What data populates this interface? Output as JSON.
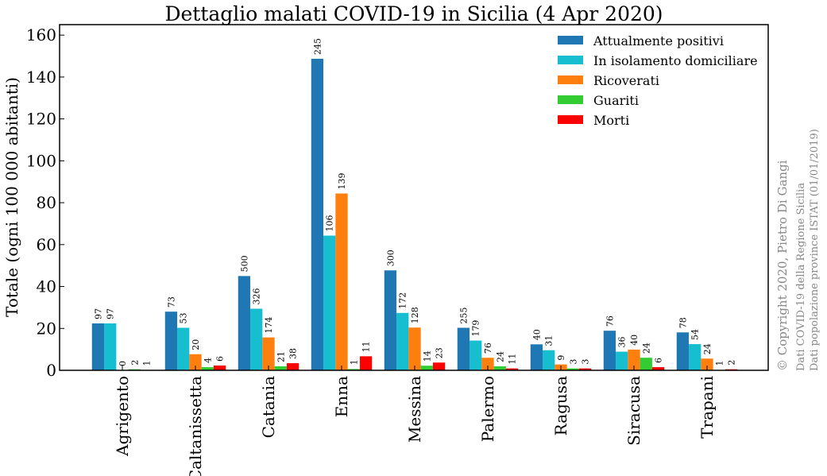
{
  "chart_data": {
    "type": "bar",
    "title": "Dettaglio malati COVID-19 in Sicilia (4 Apr 2020)",
    "xlabel": "",
    "ylabel": "Totale (ogni 100 000 abitanti)",
    "ylim": [
      0,
      165
    ],
    "yticks": [
      0,
      20,
      40,
      60,
      80,
      100,
      120,
      140,
      160
    ],
    "categories": [
      "Agrigento",
      "Caltanissetta",
      "Catania",
      "Enna",
      "Messina",
      "Palermo",
      "Ragusa",
      "Siracusa",
      "Trapani"
    ],
    "legend_position": "top-right",
    "grid": false,
    "series": [
      {
        "name": "Attualmente positivi",
        "color": "#1f77b4",
        "values": [
          22.4,
          28.0,
          45.0,
          148.7,
          47.7,
          20.3,
          12.4,
          18.9,
          18.1
        ],
        "labels": [
          "97",
          "73",
          "500",
          "245",
          "300",
          "255",
          "40",
          "76",
          "78"
        ]
      },
      {
        "name": "In isolamento domiciliare",
        "color": "#17becf",
        "values": [
          22.4,
          20.3,
          29.4,
          64.3,
          27.4,
          14.2,
          9.6,
          8.9,
          12.5
        ],
        "labels": [
          "97",
          "53",
          "326",
          "106",
          "172",
          "179",
          "31",
          "36",
          "54"
        ]
      },
      {
        "name": "Ricoverati",
        "color": "#ff7f0e",
        "values": [
          0.0,
          7.7,
          15.7,
          84.4,
          20.4,
          6.0,
          2.8,
          9.9,
          5.6
        ],
        "labels": [
          "0",
          "20",
          "174",
          "139",
          "128",
          "76",
          "9",
          "40",
          "24"
        ]
      },
      {
        "name": "Guariti",
        "color": "#33cc33",
        "values": [
          0.5,
          1.5,
          1.9,
          0.6,
          2.2,
          1.9,
          0.9,
          6.0,
          0.2
        ],
        "labels": [
          "2",
          "4",
          "21",
          "1",
          "14",
          "24",
          "3",
          "24",
          "1"
        ]
      },
      {
        "name": "Morti",
        "color": "#ff0000",
        "values": [
          0.2,
          2.3,
          3.4,
          6.7,
          3.7,
          0.9,
          0.9,
          1.5,
          0.5
        ],
        "labels": [
          "1",
          "6",
          "38",
          "11",
          "23",
          "11",
          "3",
          "6",
          "2"
        ]
      }
    ]
  },
  "credits": {
    "copyright": "© Copyright 2020, Pietro Di Gangi",
    "source_covid": "Dati COVID-19 della Regione Sicilia",
    "source_istat": "Dati popolazione province ISTAT (01/01/2019)"
  }
}
